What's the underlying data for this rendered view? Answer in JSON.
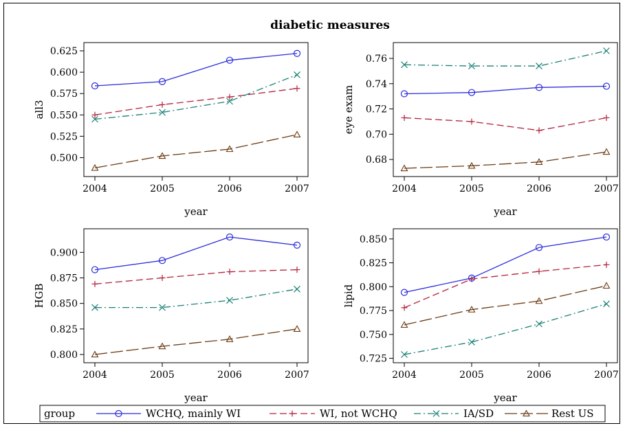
{
  "chart_data": {
    "title": "diabetic measures",
    "type": "line",
    "x": [
      "2004",
      "2005",
      "2006",
      "2007"
    ],
    "xlabel": "year",
    "legend": {
      "title": "group",
      "placement": "bottom",
      "entries": [
        "WCHQ, mainly WI",
        "WI, not WCHQ",
        "IA/SD",
        "Rest US"
      ]
    },
    "series_styles": [
      {
        "name": "WCHQ, mainly WI",
        "color": "#2b2bdc",
        "marker": "circle",
        "dash": "solid"
      },
      {
        "name": "WI, not WCHQ",
        "color": "#b2223b",
        "marker": "plus",
        "dash": "dash"
      },
      {
        "name": "IA/SD",
        "color": "#1a7f75",
        "marker": "x",
        "dash": "dashdot"
      },
      {
        "name": "Rest US",
        "color": "#6b3a12",
        "marker": "triangle",
        "dash": "longdash"
      }
    ],
    "panels": [
      {
        "ylabel": "all3",
        "ylim": [
          0.4875,
          0.625
        ],
        "yticks": [
          "0.500",
          "0.525",
          "0.550",
          "0.575",
          "0.600",
          "0.625"
        ],
        "series": [
          {
            "name": "WCHQ, mainly WI",
            "values": [
              0.584,
              0.589,
              0.614,
              0.622
            ]
          },
          {
            "name": "WI, not WCHQ",
            "values": [
              0.55,
              0.562,
              0.571,
              0.581
            ]
          },
          {
            "name": "IA/SD",
            "values": [
              0.545,
              0.553,
              0.566,
              0.597
            ]
          },
          {
            "name": "Rest US",
            "values": [
              0.488,
              0.502,
              0.51,
              0.527
            ]
          }
        ]
      },
      {
        "ylabel": "eye exam",
        "ylim": [
          0.673,
          0.766
        ],
        "yticks": [
          "0.68",
          "0.70",
          "0.72",
          "0.74",
          "0.76"
        ],
        "series": [
          {
            "name": "WCHQ, mainly WI",
            "values": [
              0.732,
              0.733,
              0.737,
              0.738
            ]
          },
          {
            "name": "WI, not WCHQ",
            "values": [
              0.713,
              0.71,
              0.703,
              0.713
            ]
          },
          {
            "name": "IA/SD",
            "values": [
              0.755,
              0.754,
              0.754,
              0.766
            ]
          },
          {
            "name": "Rest US",
            "values": [
              0.673,
              0.675,
              0.678,
              0.686
            ]
          }
        ]
      },
      {
        "ylabel": "HGB",
        "ylim": [
          0.8,
          0.915
        ],
        "yticks": [
          "0.800",
          "0.825",
          "0.850",
          "0.875",
          "0.900"
        ],
        "series": [
          {
            "name": "WCHQ, mainly WI",
            "values": [
              0.883,
              0.892,
              0.915,
              0.907
            ]
          },
          {
            "name": "WI, not WCHQ",
            "values": [
              0.869,
              0.875,
              0.881,
              0.883
            ]
          },
          {
            "name": "IA/SD",
            "values": [
              0.846,
              0.846,
              0.853,
              0.864
            ]
          },
          {
            "name": "Rest US",
            "values": [
              0.8,
              0.808,
              0.815,
              0.825
            ]
          }
        ]
      },
      {
        "ylabel": "lipid",
        "ylim": [
          0.729,
          0.852
        ],
        "yticks": [
          "0.725",
          "0.750",
          "0.775",
          "0.800",
          "0.825",
          "0.850"
        ],
        "series": [
          {
            "name": "WCHQ, mainly WI",
            "values": [
              0.794,
              0.809,
              0.841,
              0.852
            ]
          },
          {
            "name": "WI, not WCHQ",
            "values": [
              0.778,
              0.808,
              0.816,
              0.823
            ]
          },
          {
            "name": "IA/SD",
            "values": [
              0.729,
              0.742,
              0.761,
              0.782
            ]
          },
          {
            "name": "Rest US",
            "values": [
              0.76,
              0.776,
              0.785,
              0.801
            ]
          }
        ]
      }
    ]
  }
}
